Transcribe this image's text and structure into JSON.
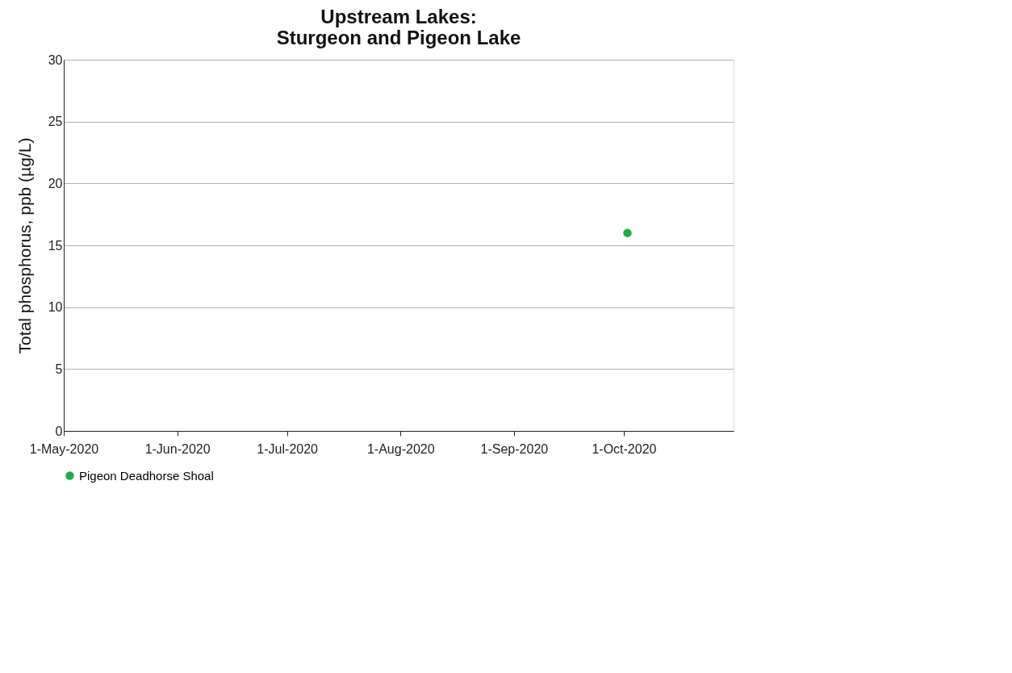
{
  "chart_data": {
    "type": "scatter",
    "title": "Upstream Lakes:\nSturgeon and Pigeon Lake",
    "ylabel": "Total phosphorus, ppb (µg/L)",
    "series": [
      {
        "name": "Pigeon Deadhorse Shoal",
        "color": "#1faa4b",
        "x": [
          "2020-10-02"
        ],
        "values": [
          16
        ]
      }
    ],
    "xlim": [
      "2020-05-01",
      "2020-10-31"
    ],
    "xticks": [
      {
        "value": "2020-05-01",
        "label": "1-May-2020"
      },
      {
        "value": "2020-06-01",
        "label": "1-Jun-2020"
      },
      {
        "value": "2020-07-01",
        "label": "1-Jul-2020"
      },
      {
        "value": "2020-08-01",
        "label": "1-Aug-2020"
      },
      {
        "value": "2020-09-01",
        "label": "1-Sep-2020"
      },
      {
        "value": "2020-10-01",
        "label": "1-Oct-2020"
      }
    ],
    "ylim": [
      0,
      30
    ],
    "yticks": [
      0,
      5,
      10,
      15,
      20,
      25,
      30
    ],
    "grid": "y",
    "legend": "bottom",
    "marker": "circle"
  }
}
